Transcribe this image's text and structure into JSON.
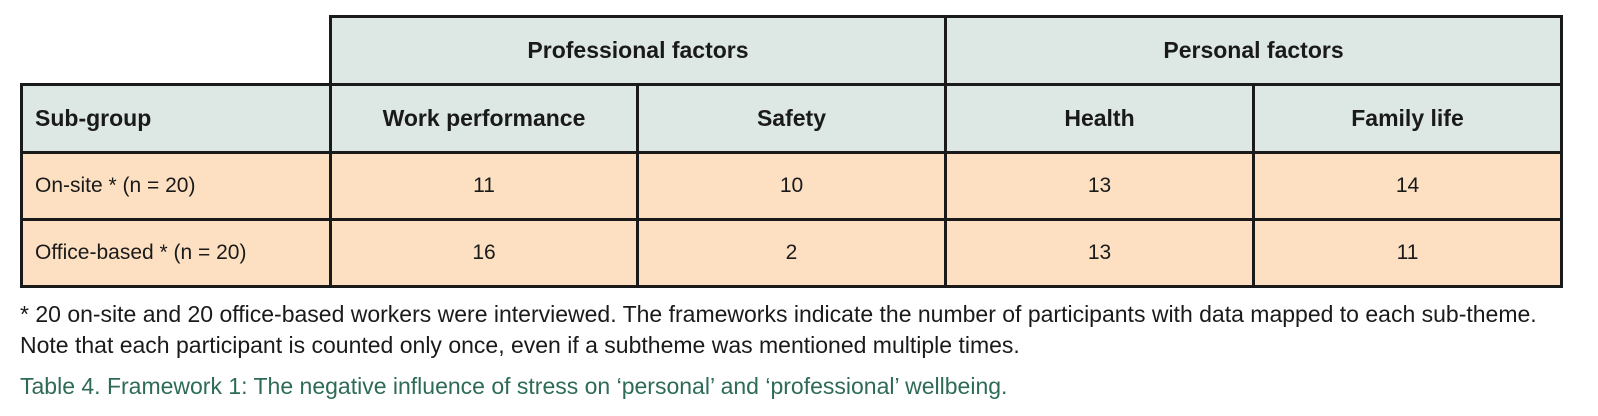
{
  "table": {
    "group_headers": [
      "Professional factors",
      "Personal factors"
    ],
    "column_headers": [
      "Sub-group",
      "Work performance",
      "Safety",
      "Health",
      "Family life"
    ],
    "rows": [
      {
        "label": "On-site * (n = 20)",
        "values": [
          "11",
          "10",
          "13",
          "14"
        ]
      },
      {
        "label": "Office-based * (n = 20)",
        "values": [
          "16",
          "2",
          "13",
          "11"
        ]
      }
    ]
  },
  "footnote": "* 20 on-site and 20 office-based workers were interviewed. The frameworks indicate the number of participants with data mapped to each sub-theme. Note that each participant is counted only once, even if a subtheme was mentioned multiple times.",
  "caption": "Table 4. Framework 1: The negative influence of stress on ‘personal’ and ‘professional’ wellbeing.",
  "colors": {
    "header_bg": "#dde8e4",
    "row_bg": "#fde0c2",
    "caption": "#2e6b57",
    "border": "#1a1a1a"
  }
}
